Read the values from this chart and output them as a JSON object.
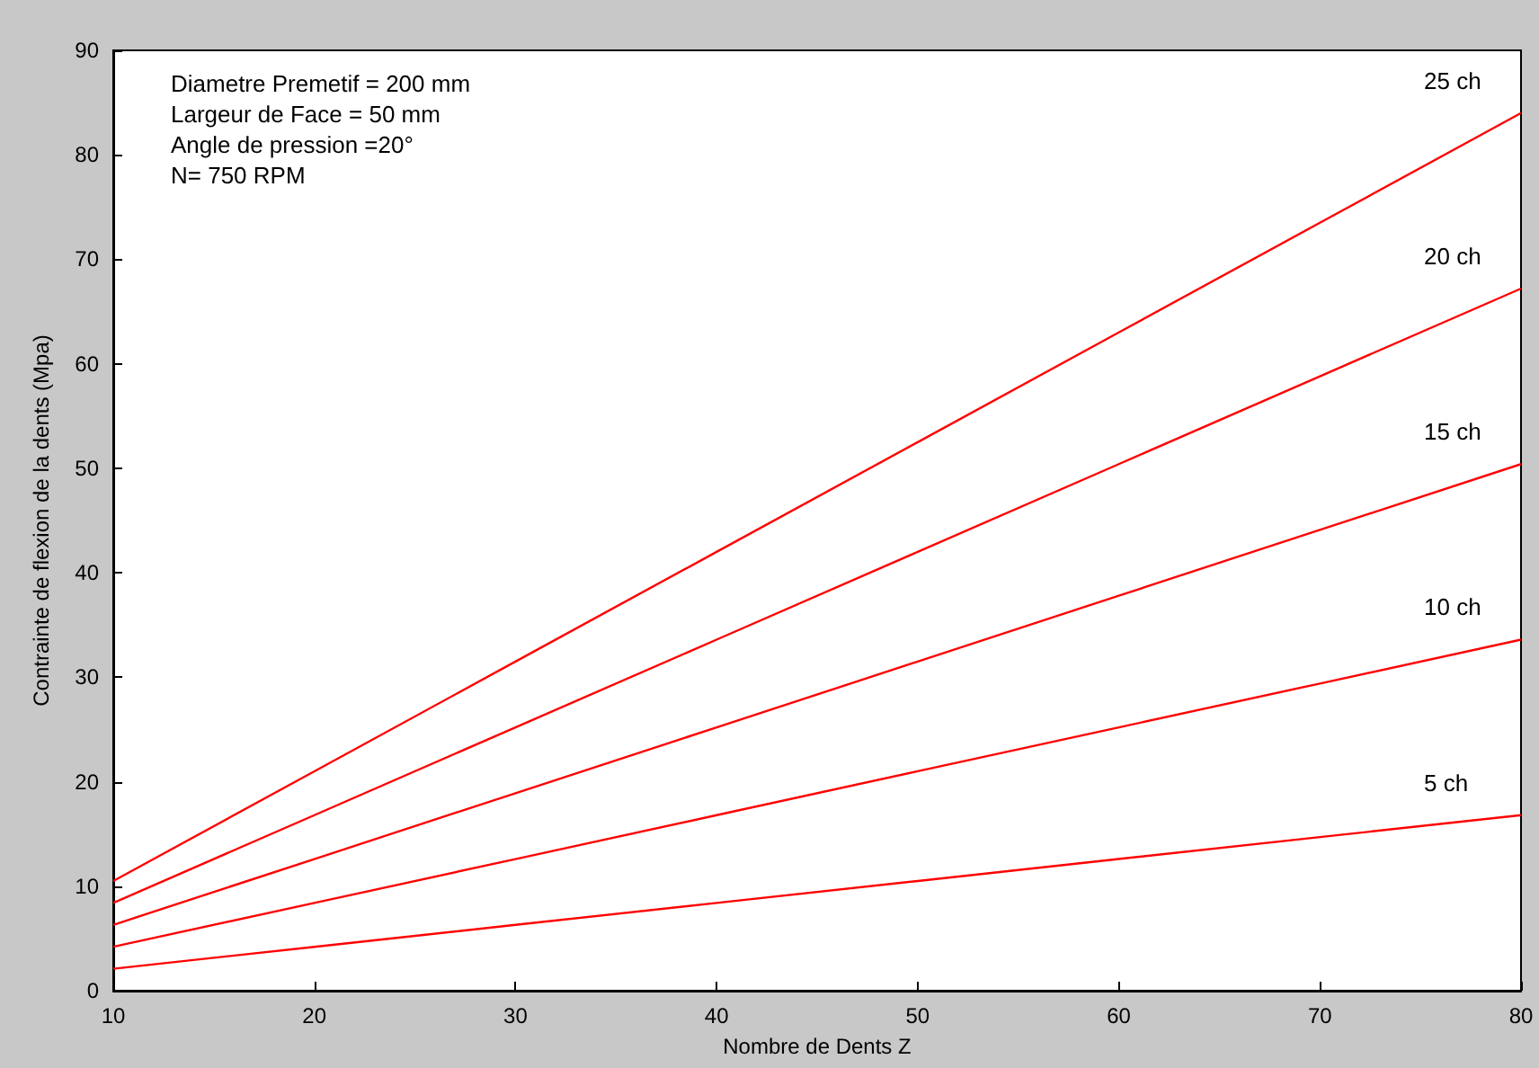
{
  "chart_data": {
    "type": "line",
    "xlabel": "Nombre de Dents Z",
    "ylabel": "Contrainte de flexion de la dents (Mpa)",
    "annotations": [
      "Diametre Premetif = 200 mm",
      "Largeur de Face = 50 mm",
      "Angle de pression =20°",
      "N= 750 RPM"
    ],
    "x": [
      10,
      20,
      30,
      40,
      50,
      60,
      70,
      80
    ],
    "series": [
      {
        "name": "25 ch",
        "color": "#ff0000",
        "values": [
          10.5,
          21,
          31.5,
          42,
          52.5,
          63,
          73.5,
          84
        ]
      },
      {
        "name": "20 ch",
        "color": "#ff0000",
        "values": [
          8.4,
          16.8,
          25.2,
          33.6,
          42,
          50.4,
          58.8,
          67.2
        ]
      },
      {
        "name": "15 ch",
        "color": "#ff0000",
        "values": [
          6.3,
          12.6,
          18.9,
          25.2,
          31.5,
          37.8,
          44.1,
          50.4
        ]
      },
      {
        "name": "10 ch",
        "color": "#ff0000",
        "values": [
          4.2,
          8.4,
          12.6,
          16.8,
          21,
          25.2,
          29.4,
          33.6
        ]
      },
      {
        "name": "5 ch",
        "color": "#ff0000",
        "values": [
          2.1,
          4.2,
          6.3,
          8.4,
          10.5,
          12.6,
          14.7,
          16.8
        ]
      }
    ],
    "xlim": [
      10,
      80
    ],
    "xticks": [
      10,
      20,
      30,
      40,
      50,
      60,
      70,
      80
    ],
    "ylim": [
      0,
      90
    ],
    "yticks": [
      0,
      10,
      20,
      30,
      40,
      50,
      60,
      70,
      80,
      90
    ],
    "grid": false,
    "legend": false,
    "marker": "none",
    "line_style": "solid"
  }
}
